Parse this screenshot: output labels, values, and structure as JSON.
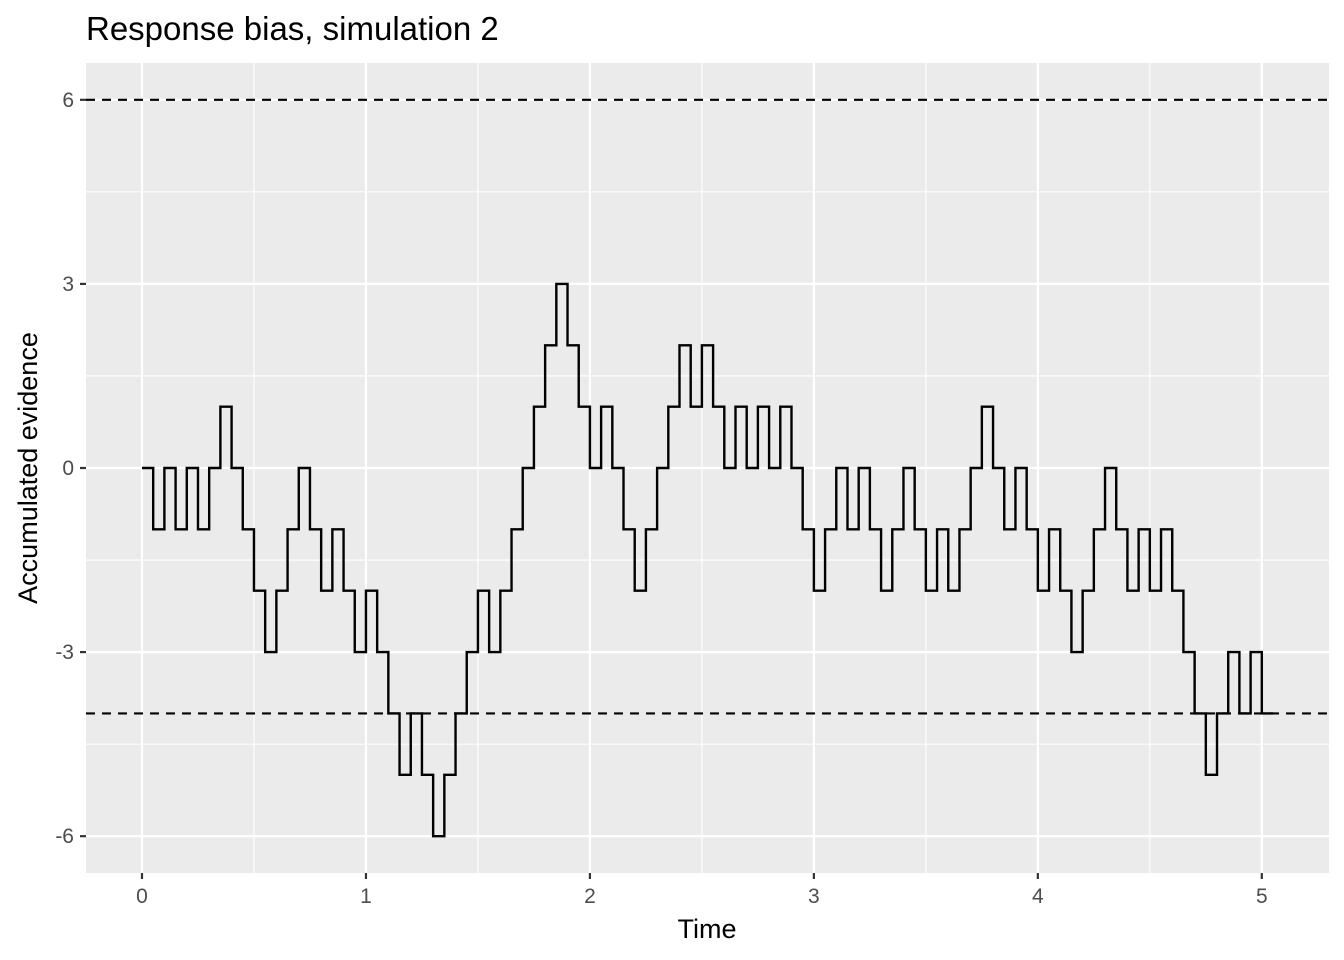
{
  "chart_data": {
    "type": "line",
    "subtype": "step",
    "title": "Response bias, simulation 2",
    "xlabel": "Time",
    "ylabel": "Accumulated evidence",
    "xlim": [
      -0.25,
      5.3
    ],
    "ylim": [
      -6.6,
      6.6
    ],
    "x_ticks": [
      0,
      1,
      2,
      3,
      4,
      5
    ],
    "x_tick_labels": [
      "0",
      "1",
      "2",
      "3",
      "4",
      "5"
    ],
    "y_ticks": [
      -6,
      -3,
      0,
      3,
      6
    ],
    "y_tick_labels": [
      "-6",
      "-3",
      "0",
      "3",
      "6"
    ],
    "grid": true,
    "legend": "none",
    "background_color": "#ebebeb",
    "grid_color": "#ffffff",
    "line_color": "#000000",
    "thresholds": [
      {
        "name": "upper",
        "value": 6,
        "style": "dashed"
      },
      {
        "name": "lower",
        "value": -4,
        "style": "dashed"
      }
    ],
    "series": [
      {
        "step": 0.05,
        "x_start": 0,
        "values": [
          0,
          -1,
          0,
          -1,
          0,
          -1,
          0,
          1,
          0,
          -1,
          -2,
          -3,
          -2,
          -1,
          0,
          -1,
          -2,
          -1,
          -2,
          -3,
          -2,
          -3,
          -4,
          -5,
          -4,
          -5,
          -6,
          -5,
          -4,
          -3,
          -2,
          -3,
          -2,
          -1,
          0,
          1,
          2,
          3,
          2,
          1,
          0,
          1,
          0,
          -1,
          -2,
          -1,
          0,
          1,
          2,
          1,
          2,
          1,
          0,
          1,
          0,
          1,
          0,
          1,
          0,
          -1,
          -2,
          -1,
          0,
          -1,
          0,
          -1,
          -2,
          -1,
          0,
          -1,
          -2,
          -1,
          -2,
          -1,
          0,
          1,
          0,
          -1,
          0,
          -1,
          -2,
          -1,
          -2,
          -3,
          -2,
          -1,
          0,
          -1,
          -2,
          -1,
          -2,
          -1,
          -2,
          -3,
          -4,
          -5,
          -4,
          -3,
          -4,
          -3,
          -4
        ]
      }
    ]
  }
}
